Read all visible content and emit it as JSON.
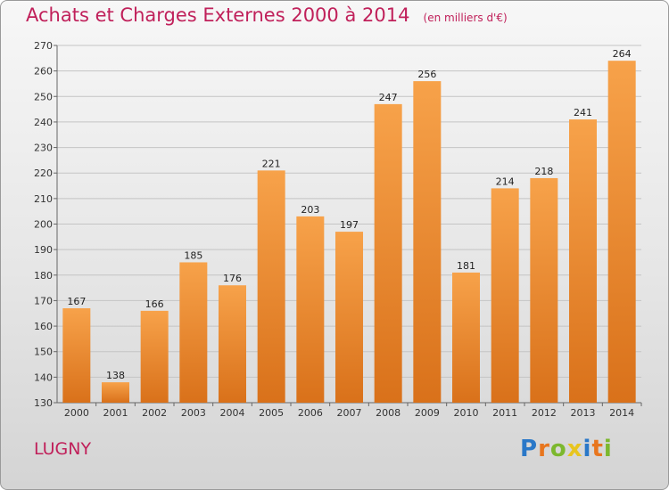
{
  "header": {
    "title": "Achats et Charges Externes 2000 à 2014",
    "unit": "(en milliers d'€)"
  },
  "footer": {
    "commune": "LUGNY"
  },
  "logo": {
    "text": "Proxiti",
    "letters": [
      {
        "ch": "P",
        "color": "#2a78c8"
      },
      {
        "ch": "r",
        "color": "#e8761e"
      },
      {
        "ch": "o",
        "color": "#7cb82e"
      },
      {
        "ch": "x",
        "color": "#e8c51e"
      },
      {
        "ch": "i",
        "color": "#2a78c8"
      },
      {
        "ch": "t",
        "color": "#e8761e"
      },
      {
        "ch": "i",
        "color": "#7cb82e"
      }
    ]
  },
  "chart_data": {
    "type": "bar",
    "title": "Achats et Charges Externes 2000 à 2014",
    "subtitle": "(en milliers d'€)",
    "categories": [
      "2000",
      "2001",
      "2002",
      "2003",
      "2004",
      "2005",
      "2006",
      "2007",
      "2008",
      "2009",
      "2010",
      "2011",
      "2012",
      "2013",
      "2014"
    ],
    "values": [
      167,
      138,
      166,
      185,
      176,
      221,
      203,
      197,
      247,
      256,
      181,
      214,
      218,
      241,
      264
    ],
    "ylim": [
      130,
      270
    ],
    "yticks": [
      130,
      140,
      150,
      160,
      170,
      180,
      190,
      200,
      210,
      220,
      230,
      240,
      250,
      260,
      270
    ],
    "grid": true,
    "bar_color_top": "#f7a24a",
    "bar_color_bottom": "#d9711a"
  }
}
